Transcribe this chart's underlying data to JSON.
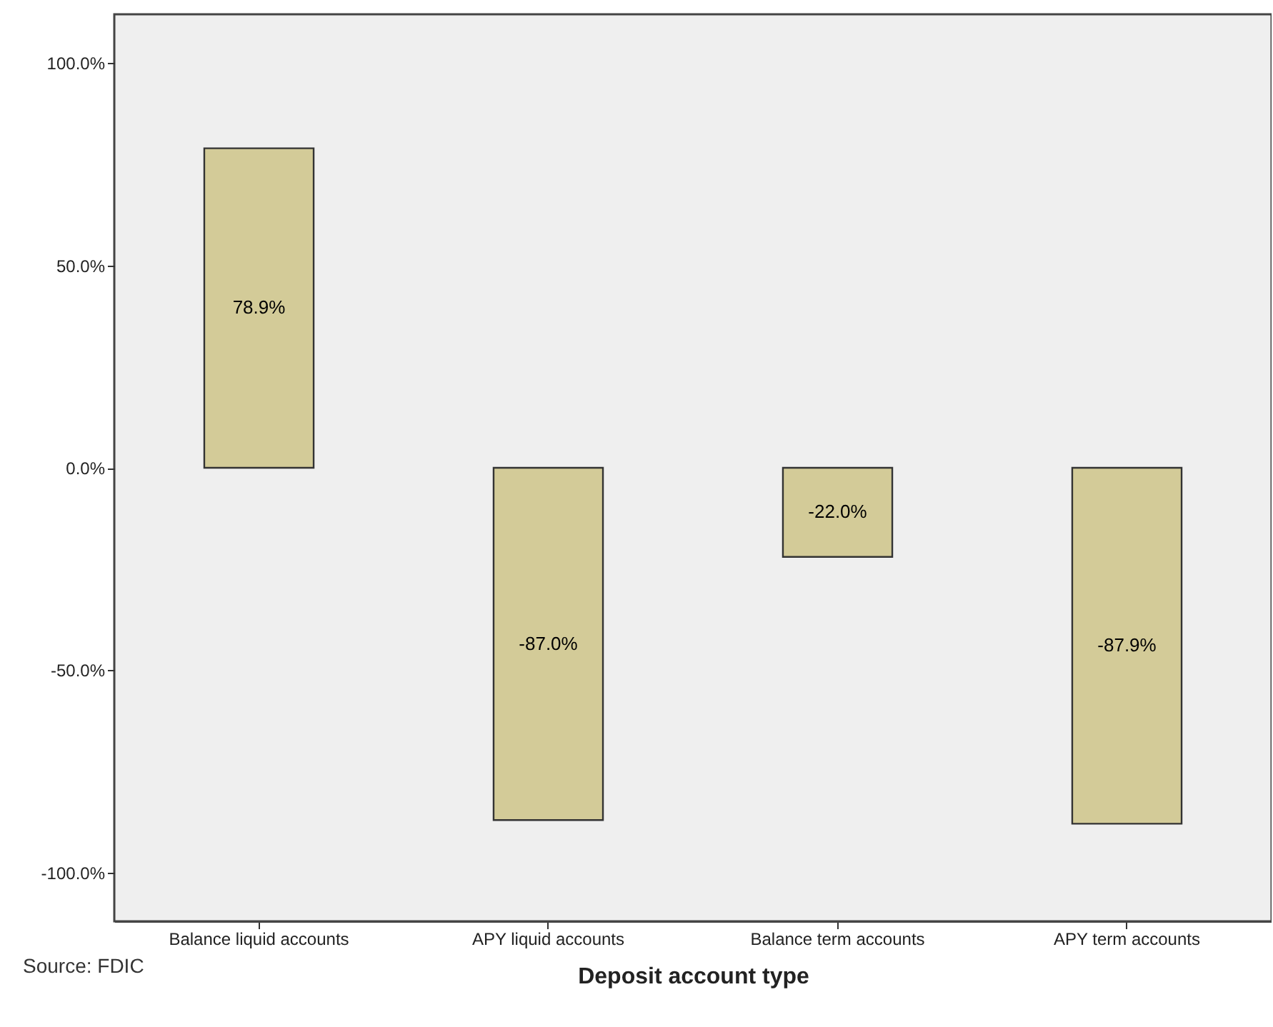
{
  "chart_data": {
    "type": "bar",
    "xlabel": "Deposit account type",
    "categories": [
      "Balance liquid accounts",
      "APY liquid accounts",
      "Balance term accounts",
      "APY term accounts"
    ],
    "values": [
      78.9,
      -87.0,
      -22.0,
      -87.9
    ],
    "color": "#d3cb98",
    "value_labels": [
      "78.9%",
      "-87.0%",
      "-22.0%",
      "-87.9%"
    ],
    "ylim": [
      -112,
      112
    ],
    "yticks": [
      {
        "value": -100,
        "label": "-100.0%"
      },
      {
        "value": -50,
        "label": "-50.0%"
      },
      {
        "value": 0,
        "label": "0.0%"
      },
      {
        "value": 50,
        "label": "50.0%"
      },
      {
        "value": 100,
        "label": "100.0%"
      }
    ],
    "grid": false,
    "annotations": [
      "Source: FDIC"
    ]
  }
}
